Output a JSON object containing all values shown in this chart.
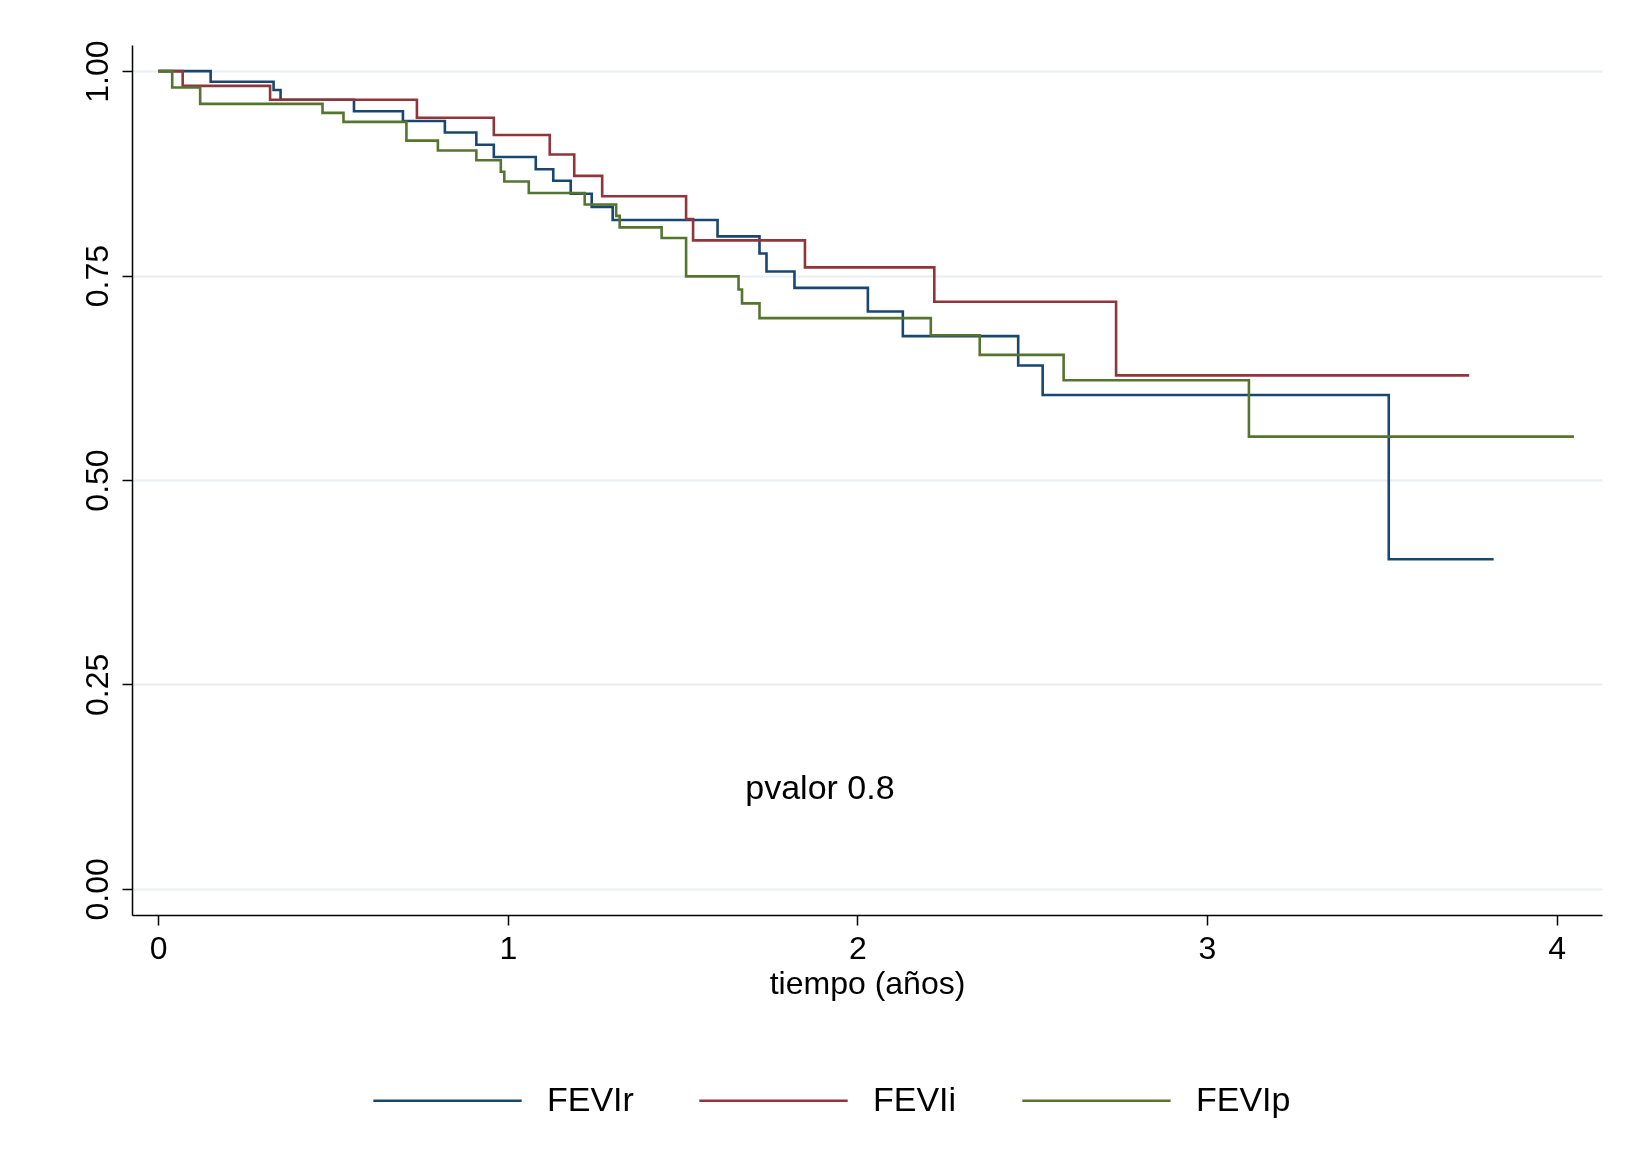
{
  "chart_data": {
    "type": "step",
    "xlabel": "tiempo (años)",
    "annotations": [
      "pvalor 0.8"
    ],
    "xlim": [
      -0.075,
      4.13
    ],
    "xticks": [
      0,
      1,
      2,
      3,
      4
    ],
    "ylim": [
      -0.032,
      1.032
    ],
    "yticks": [
      {
        "value": 0,
        "label": "0.00"
      },
      {
        "value": 0.25,
        "label": "0.25"
      },
      {
        "value": 0.5,
        "label": "0.50"
      },
      {
        "value": 0.75,
        "label": "0.75"
      },
      {
        "value": 1,
        "label": "1.00"
      }
    ],
    "grid": "y",
    "legend": "bottom",
    "line_style": "solid",
    "marker": "none",
    "series": [
      {
        "name": "FEVIr",
        "color": "#1a476f",
        "x": [
          0,
          0.15,
          0.33,
          0.35,
          0.56,
          0.7,
          0.82,
          0.91,
          0.96,
          1.08,
          1.13,
          1.18,
          1.24,
          1.3,
          1.6,
          1.72,
          1.74,
          1.82,
          2.03,
          2.13,
          2.46,
          2.53,
          3.52,
          3.82
        ],
        "values": [
          1.0,
          0.987,
          0.977,
          0.965,
          0.951,
          0.939,
          0.925,
          0.91,
          0.895,
          0.88,
          0.866,
          0.85,
          0.834,
          0.818,
          0.798,
          0.777,
          0.755,
          0.735,
          0.706,
          0.676,
          0.64,
          0.604,
          0.403,
          0.403
        ]
      },
      {
        "name": "FEVIi",
        "color": "#90353b",
        "x": [
          0,
          0.07,
          0.32,
          0.74,
          0.96,
          1.12,
          1.19,
          1.27,
          1.51,
          1.53,
          1.85,
          2.22,
          2.74,
          3.75
        ],
        "values": [
          1.0,
          0.982,
          0.965,
          0.943,
          0.922,
          0.898,
          0.872,
          0.847,
          0.819,
          0.793,
          0.76,
          0.718,
          0.628,
          0.628
        ]
      },
      {
        "name": "FEVIp",
        "color": "#55752f",
        "x": [
          0,
          0.04,
          0.12,
          0.47,
          0.53,
          0.71,
          0.8,
          0.91,
          0.98,
          0.99,
          1.06,
          1.22,
          1.31,
          1.32,
          1.44,
          1.51,
          1.66,
          1.67,
          1.72,
          2.21,
          2.35,
          2.59,
          3.12,
          4.05
        ],
        "values": [
          1.0,
          0.98,
          0.96,
          0.949,
          0.938,
          0.915,
          0.903,
          0.891,
          0.877,
          0.865,
          0.851,
          0.837,
          0.823,
          0.809,
          0.796,
          0.749,
          0.733,
          0.716,
          0.698,
          0.677,
          0.653,
          0.622,
          0.553,
          0.553
        ]
      }
    ]
  }
}
